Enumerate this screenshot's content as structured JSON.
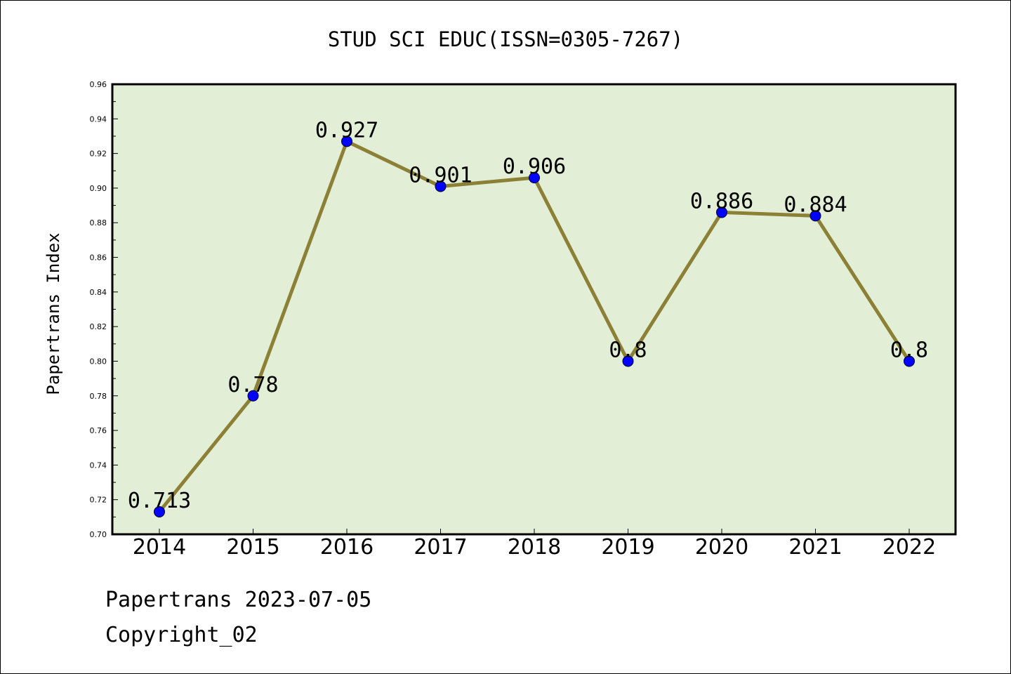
{
  "chart_data": {
    "type": "line",
    "title": "STUD SCI EDUC(ISSN=0305-7267)",
    "ylabel": "Papertrans Index",
    "xlabel": "",
    "categories": [
      "2014",
      "2015",
      "2016",
      "2017",
      "2018",
      "2019",
      "2020",
      "2021",
      "2022"
    ],
    "values": [
      0.713,
      0.78,
      0.927,
      0.901,
      0.906,
      0.8,
      0.886,
      0.884,
      0.8
    ],
    "value_labels": [
      "0.713",
      "0.78",
      "0.927",
      "0.901",
      "0.906",
      "0.8",
      "0.886",
      "0.884",
      "0.8"
    ],
    "ylim": [
      0.7,
      0.96
    ],
    "yticks": [
      "0.70",
      "0.72",
      "0.74",
      "0.76",
      "0.78",
      "0.80",
      "0.82",
      "0.84",
      "0.86",
      "0.88",
      "0.90",
      "0.92",
      "0.94",
      "0.96"
    ],
    "grid": false,
    "colors": {
      "plot_background": "#e2efd6",
      "line": "#8b8035",
      "marker": "#0000ff",
      "axis": "#000000"
    }
  },
  "footer": {
    "date_line": "Papertrans 2023-07-05",
    "copyright": "Copyright_02"
  }
}
